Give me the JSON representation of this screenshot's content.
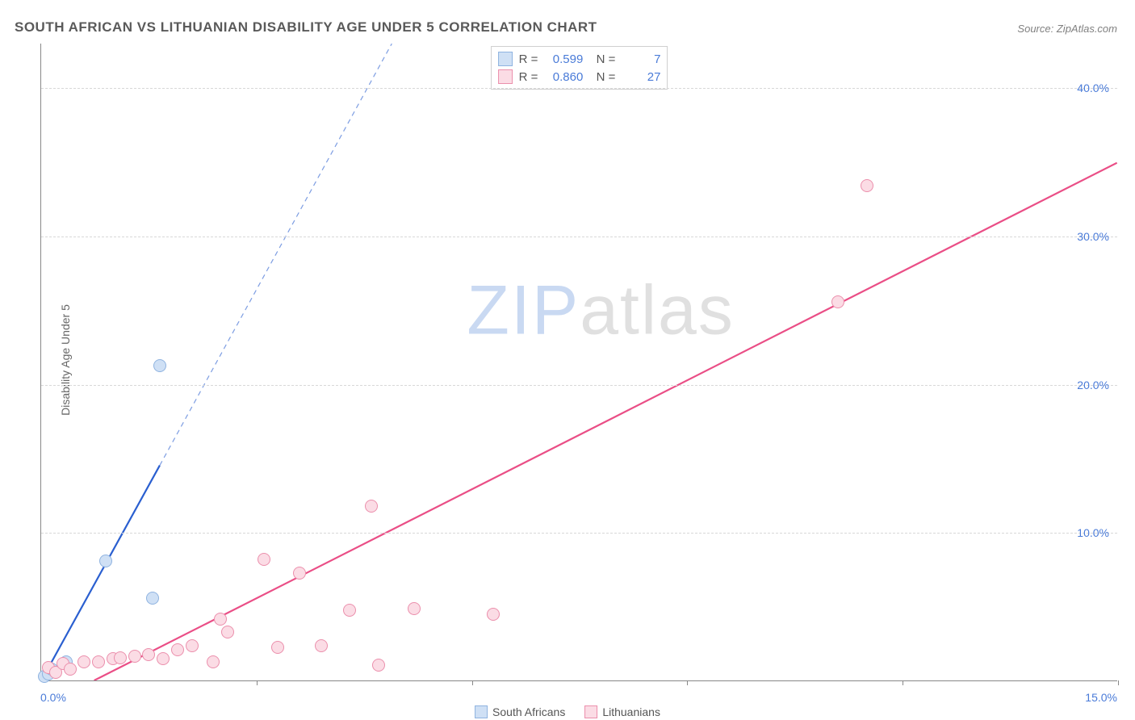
{
  "title": "SOUTH AFRICAN VS LITHUANIAN DISABILITY AGE UNDER 5 CORRELATION CHART",
  "source_label": "Source:",
  "source_value": "ZipAtlas.com",
  "y_axis_label": "Disability Age Under 5",
  "watermark": {
    "part1": "ZIP",
    "part2": "atlas"
  },
  "chart": {
    "type": "scatter",
    "background_color": "#ffffff",
    "grid_color": "#d8d8d8",
    "axis_color": "#888888",
    "tick_color": "#4a7bd8",
    "xlim": [
      0,
      15
    ],
    "ylim": [
      0,
      43
    ],
    "x_ticks": [
      0,
      3,
      6,
      9,
      12,
      15
    ],
    "x_tick_labels": [
      "0.0%",
      "",
      "",
      "",
      "",
      "15.0%"
    ],
    "y_ticks": [
      10,
      20,
      30,
      40
    ],
    "y_tick_labels": [
      "10.0%",
      "20.0%",
      "30.0%",
      "40.0%"
    ],
    "point_radius": 8,
    "series": [
      {
        "name": "South Africans",
        "color_fill": "#cfe0f5",
        "color_stroke": "#8fb3e0",
        "R": "0.599",
        "N": "7",
        "trend": {
          "slope": 8.8,
          "intercept": 0,
          "solid_until_x": 1.65,
          "color": "#2a5fd0",
          "width": 2.2
        },
        "points": [
          {
            "x": 0.05,
            "y": 0.3
          },
          {
            "x": 0.1,
            "y": 0.5
          },
          {
            "x": 0.15,
            "y": 0.8
          },
          {
            "x": 0.35,
            "y": 1.3
          },
          {
            "x": 0.9,
            "y": 8.1
          },
          {
            "x": 1.55,
            "y": 5.6
          },
          {
            "x": 1.65,
            "y": 21.3
          }
        ]
      },
      {
        "name": "Lithuanians",
        "color_fill": "#fbdce5",
        "color_stroke": "#eb8fac",
        "R": "0.860",
        "N": "27",
        "trend": {
          "slope": 2.45,
          "intercept": -1.8,
          "solid_until_x": 15,
          "color": "#ea4e86",
          "width": 2.2
        },
        "points": [
          {
            "x": 0.1,
            "y": 0.9
          },
          {
            "x": 0.2,
            "y": 0.6
          },
          {
            "x": 0.3,
            "y": 1.2
          },
          {
            "x": 0.4,
            "y": 0.8
          },
          {
            "x": 0.6,
            "y": 1.3
          },
          {
            "x": 0.8,
            "y": 1.3
          },
          {
            "x": 1.0,
            "y": 1.5
          },
          {
            "x": 1.1,
            "y": 1.6
          },
          {
            "x": 1.3,
            "y": 1.7
          },
          {
            "x": 1.5,
            "y": 1.8
          },
          {
            "x": 1.7,
            "y": 1.5
          },
          {
            "x": 1.9,
            "y": 2.1
          },
          {
            "x": 2.1,
            "y": 2.4
          },
          {
            "x": 2.4,
            "y": 1.3
          },
          {
            "x": 2.5,
            "y": 4.2
          },
          {
            "x": 2.6,
            "y": 3.3
          },
          {
            "x": 3.1,
            "y": 8.2
          },
          {
            "x": 3.3,
            "y": 2.3
          },
          {
            "x": 3.6,
            "y": 7.3
          },
          {
            "x": 3.9,
            "y": 2.4
          },
          {
            "x": 4.3,
            "y": 4.8
          },
          {
            "x": 4.6,
            "y": 11.8
          },
          {
            "x": 4.7,
            "y": 1.1
          },
          {
            "x": 5.2,
            "y": 4.9
          },
          {
            "x": 6.3,
            "y": 4.5
          },
          {
            "x": 11.1,
            "y": 25.6
          },
          {
            "x": 11.5,
            "y": 33.4
          }
        ]
      }
    ]
  },
  "legend_bottom": [
    {
      "label": "South Africans",
      "fill": "#cfe0f5",
      "stroke": "#8fb3e0"
    },
    {
      "label": "Lithuanians",
      "fill": "#fbdce5",
      "stroke": "#eb8fac"
    }
  ]
}
